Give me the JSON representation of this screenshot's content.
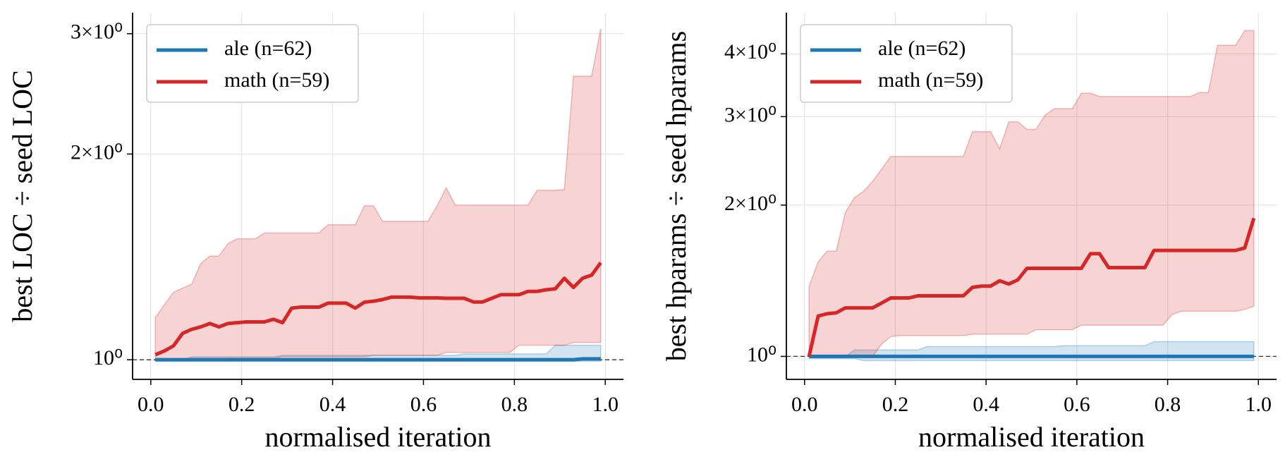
{
  "chart_data": [
    {
      "type": "line",
      "xlabel": "normalised iteration",
      "ylabel": "best LOC ÷ seed LOC",
      "yscale": "log",
      "grid": true,
      "legend": "upper left",
      "hline": 1,
      "xlim": [
        -0.04,
        1.04
      ],
      "ylim": [
        0.936,
        3.22
      ],
      "xticks": [
        {
          "value": 0,
          "label": "0.0"
        },
        0.2,
        0.4,
        0.6,
        0.8,
        {
          "value": 1,
          "label": "1.0"
        }
      ],
      "yticks": [
        {
          "value": 1,
          "label": "10⁰"
        },
        {
          "value": 2,
          "label": "2×10⁰"
        },
        {
          "value": 3,
          "label": "3×10⁰"
        }
      ],
      "x": [
        0.01,
        0.03,
        0.05,
        0.07,
        0.09,
        0.11,
        0.13,
        0.15,
        0.17,
        0.19,
        0.21,
        0.23,
        0.25,
        0.27,
        0.29,
        0.31,
        0.33,
        0.35,
        0.37,
        0.39,
        0.41,
        0.43,
        0.45,
        0.47,
        0.49,
        0.51,
        0.53,
        0.55,
        0.57,
        0.59,
        0.61,
        0.63,
        0.65,
        0.67,
        0.69,
        0.71,
        0.73,
        0.75,
        0.77,
        0.79,
        0.81,
        0.83,
        0.85,
        0.87,
        0.89,
        0.91,
        0.93,
        0.95,
        0.97,
        0.99
      ],
      "series": [
        {
          "name": "ale (n=62)",
          "color": "#1f77b4",
          "values": [
            1,
            1,
            1,
            1,
            1,
            1,
            1,
            1,
            1,
            1,
            1,
            1,
            1,
            1,
            1,
            1,
            1,
            1,
            1,
            1,
            1,
            1,
            1,
            1,
            1,
            1,
            1,
            1,
            1,
            1,
            1,
            1,
            1,
            1,
            1,
            1,
            1,
            1,
            1,
            1,
            1,
            1,
            1,
            1,
            1,
            1,
            1,
            1.003,
            1.003,
            1.003
          ],
          "band_lower": [
            0.995,
            0.995,
            0.995,
            0.995,
            0.995,
            0.995,
            0.995,
            0.995,
            0.995,
            0.995,
            0.995,
            0.995,
            0.995,
            0.995,
            0.995,
            0.995,
            0.995,
            0.995,
            0.995,
            0.995,
            0.995,
            0.995,
            0.995,
            0.995,
            0.995,
            0.995,
            0.995,
            0.995,
            0.995,
            0.995,
            0.995,
            0.995,
            0.995,
            0.995,
            0.995,
            0.995,
            0.995,
            0.995,
            0.995,
            0.995,
            0.995,
            0.995,
            0.995,
            0.995,
            0.995,
            0.995,
            0.995,
            0.995,
            0.995,
            0.995
          ],
          "band_upper": [
            1,
            1,
            1,
            1,
            1.01,
            1.01,
            1.01,
            1.01,
            1.01,
            1.01,
            1.01,
            1.01,
            1.01,
            1.01,
            1.015,
            1.015,
            1.015,
            1.015,
            1.015,
            1.015,
            1.015,
            1.015,
            1.015,
            1.015,
            1.015,
            1.015,
            1.015,
            1.015,
            1.015,
            1.015,
            1.015,
            1.015,
            1.015,
            1.015,
            1.02,
            1.02,
            1.02,
            1.02,
            1.02,
            1.02,
            1.02,
            1.02,
            1.02,
            1.02,
            1.05,
            1.05,
            1.05,
            1.05,
            1.05,
            1.05
          ]
        },
        {
          "name": "math (n=59)",
          "color": "#d62728",
          "values": [
            1.017,
            1.03,
            1.048,
            1.093,
            1.108,
            1.117,
            1.13,
            1.117,
            1.13,
            1.133,
            1.136,
            1.136,
            1.136,
            1.146,
            1.133,
            1.19,
            1.194,
            1.194,
            1.194,
            1.21,
            1.21,
            1.21,
            1.19,
            1.214,
            1.218,
            1.225,
            1.235,
            1.235,
            1.235,
            1.232,
            1.232,
            1.232,
            1.23,
            1.23,
            1.23,
            1.215,
            1.215,
            1.23,
            1.245,
            1.245,
            1.245,
            1.259,
            1.259,
            1.266,
            1.27,
            1.316,
            1.276,
            1.316,
            1.33,
            1.387
          ],
          "band_lower": [
            1,
            1,
            1,
            1,
            1,
            1,
            1,
            1,
            1.005,
            1.005,
            1.005,
            1.005,
            1.005,
            1.005,
            1.01,
            1.01,
            1.01,
            1.01,
            1.01,
            1.01,
            1.01,
            1.01,
            1.01,
            1.01,
            1.015,
            1.015,
            1.015,
            1.015,
            1.015,
            1.015,
            1.015,
            1.015,
            1.025,
            1.025,
            1.025,
            1.025,
            1.025,
            1.025,
            1.025,
            1.025,
            1.05,
            1.05,
            1.05,
            1.05,
            1.05,
            1.05,
            1.06,
            1.06,
            1.06,
            1.06
          ],
          "band_upper": [
            1.152,
            1.204,
            1.255,
            1.273,
            1.29,
            1.383,
            1.418,
            1.418,
            1.479,
            1.503,
            1.503,
            1.503,
            1.533,
            1.533,
            1.533,
            1.533,
            1.533,
            1.533,
            1.533,
            1.576,
            1.576,
            1.576,
            1.576,
            1.68,
            1.68,
            1.594,
            1.594,
            1.594,
            1.594,
            1.594,
            1.594,
            1.68,
            1.785,
            1.684,
            1.684,
            1.684,
            1.684,
            1.684,
            1.684,
            1.684,
            1.684,
            1.684,
            1.77,
            1.77,
            1.77,
            1.775,
            2.6,
            2.6,
            2.6,
            3.05
          ]
        }
      ]
    },
    {
      "type": "line",
      "xlabel": "normalised iteration",
      "ylabel": "best hparams ÷ seed hparams",
      "yscale": "log",
      "grid": true,
      "legend": "upper left",
      "hline": 1,
      "xlim": [
        -0.04,
        1.04
      ],
      "ylim": [
        0.9,
        4.83
      ],
      "xticks": [
        {
          "value": 0,
          "label": "0.0"
        },
        0.2,
        0.4,
        0.6,
        0.8,
        {
          "value": 1,
          "label": "1.0"
        }
      ],
      "yticks": [
        {
          "value": 1,
          "label": "10⁰"
        },
        {
          "value": 2,
          "label": "2×10⁰"
        },
        {
          "value": 3,
          "label": "3×10⁰"
        },
        {
          "value": 4,
          "label": "4×10⁰"
        }
      ],
      "x": [
        0.01,
        0.03,
        0.05,
        0.07,
        0.09,
        0.11,
        0.13,
        0.15,
        0.17,
        0.19,
        0.21,
        0.23,
        0.25,
        0.27,
        0.29,
        0.31,
        0.33,
        0.35,
        0.37,
        0.39,
        0.41,
        0.43,
        0.45,
        0.47,
        0.49,
        0.51,
        0.53,
        0.55,
        0.57,
        0.59,
        0.61,
        0.63,
        0.65,
        0.67,
        0.69,
        0.71,
        0.73,
        0.75,
        0.77,
        0.79,
        0.81,
        0.83,
        0.85,
        0.87,
        0.89,
        0.91,
        0.93,
        0.95,
        0.97,
        0.99
      ],
      "series": [
        {
          "name": "ale (n=62)",
          "color": "#1f77b4",
          "values": [
            1,
            1,
            1,
            1,
            1,
            1,
            1,
            1,
            1,
            1,
            1,
            1,
            1,
            1,
            1,
            1,
            1,
            1,
            1,
            1,
            1,
            1,
            1,
            1,
            1,
            1,
            1,
            1,
            1,
            1,
            1,
            1,
            1,
            1,
            1,
            1,
            1,
            1,
            1,
            1,
            1,
            1,
            1,
            1,
            1,
            1,
            1,
            1,
            1,
            1
          ],
          "band_lower": [
            0.99,
            0.99,
            0.99,
            0.99,
            0.99,
            0.99,
            0.981,
            0.981,
            0.981,
            0.981,
            0.981,
            0.981,
            0.981,
            0.981,
            0.981,
            0.981,
            0.981,
            0.981,
            0.981,
            0.981,
            0.981,
            0.981,
            0.981,
            0.981,
            0.981,
            0.981,
            0.981,
            0.981,
            0.981,
            0.981,
            0.981,
            0.981,
            0.981,
            0.981,
            0.981,
            0.981,
            0.981,
            0.981,
            0.981,
            0.981,
            0.981,
            0.981,
            0.981,
            0.981,
            0.981,
            0.981,
            0.981,
            0.981,
            0.981,
            0.981
          ],
          "band_upper": [
            1,
            1,
            1,
            1,
            1,
            1.03,
            1.03,
            1.03,
            1.03,
            1.03,
            1.03,
            1.03,
            1.03,
            1.046,
            1.046,
            1.046,
            1.046,
            1.046,
            1.046,
            1.046,
            1.046,
            1.046,
            1.046,
            1.046,
            1.046,
            1.046,
            1.046,
            1.046,
            1.05,
            1.05,
            1.05,
            1.05,
            1.05,
            1.05,
            1.05,
            1.05,
            1.05,
            1.05,
            1.07,
            1.07,
            1.07,
            1.07,
            1.07,
            1.07,
            1.07,
            1.07,
            1.07,
            1.07,
            1.07,
            1.07
          ]
        },
        {
          "name": "math (n=59)",
          "color": "#d62728",
          "values": [
            1,
            1.203,
            1.216,
            1.221,
            1.249,
            1.249,
            1.249,
            1.249,
            1.277,
            1.307,
            1.307,
            1.307,
            1.32,
            1.32,
            1.32,
            1.32,
            1.32,
            1.32,
            1.372,
            1.38,
            1.38,
            1.414,
            1.393,
            1.42,
            1.497,
            1.497,
            1.497,
            1.497,
            1.497,
            1.497,
            1.497,
            1.601,
            1.601,
            1.502,
            1.502,
            1.502,
            1.502,
            1.502,
            1.625,
            1.625,
            1.625,
            1.625,
            1.625,
            1.625,
            1.625,
            1.625,
            1.625,
            1.625,
            1.644,
            1.883
          ],
          "band_lower": [
            1,
            1,
            1,
            1,
            1,
            1,
            1,
            1,
            1.058,
            1.095,
            1.1,
            1.1,
            1.1,
            1.1,
            1.1,
            1.1,
            1.1,
            1.1,
            1.107,
            1.107,
            1.107,
            1.107,
            1.107,
            1.107,
            1.107,
            1.13,
            1.13,
            1.13,
            1.13,
            1.13,
            1.154,
            1.154,
            1.154,
            1.154,
            1.154,
            1.154,
            1.154,
            1.154,
            1.154,
            1.154,
            1.212,
            1.23,
            1.23,
            1.23,
            1.23,
            1.23,
            1.23,
            1.23,
            1.24,
            1.258
          ],
          "band_upper": [
            1.378,
            1.542,
            1.62,
            1.62,
            1.934,
            2.07,
            2.13,
            2.23,
            2.36,
            2.5,
            2.5,
            2.5,
            2.5,
            2.5,
            2.5,
            2.5,
            2.5,
            2.5,
            2.8,
            2.8,
            2.8,
            2.59,
            2.93,
            2.93,
            2.83,
            2.83,
            3.02,
            3.11,
            3.11,
            3.11,
            3.34,
            3.34,
            3.29,
            3.29,
            3.29,
            3.29,
            3.29,
            3.29,
            3.29,
            3.29,
            3.29,
            3.29,
            3.29,
            3.35,
            3.35,
            4.16,
            4.16,
            4.16,
            4.45,
            4.45
          ]
        }
      ]
    }
  ]
}
